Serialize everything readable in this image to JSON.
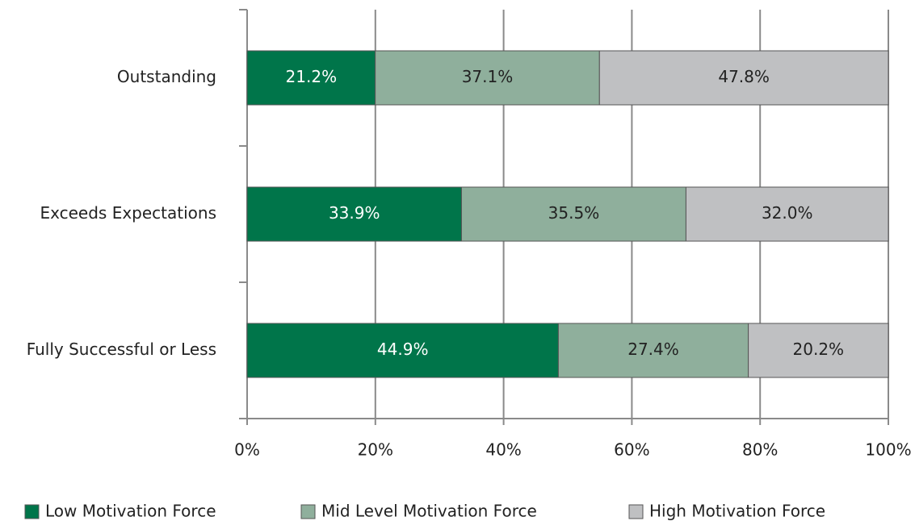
{
  "chart_data": {
    "type": "bar",
    "orientation": "horizontal",
    "stacking": "percent",
    "categories": [
      "Outstanding",
      "Exceeds Expectations",
      "Fully Successful or Less"
    ],
    "series": [
      {
        "name": "Low Motivation Force",
        "color": "#00754a",
        "label_color": "#ffffff",
        "values": [
          21.2,
          33.9,
          44.9
        ],
        "value_labels": [
          "21.2%",
          "33.9%",
          "44.9%"
        ]
      },
      {
        "name": "Mid Level Motivation Force",
        "color": "#8faf9c",
        "label_color": "#222222",
        "values": [
          37.1,
          35.5,
          27.4
        ],
        "value_labels": [
          "37.1%",
          "35.5%",
          "27.4%"
        ]
      },
      {
        "name": "High Motivation Force",
        "color": "#bfc0c2",
        "label_color": "#222222",
        "values": [
          47.8,
          32.0,
          20.2
        ],
        "value_labels": [
          "47.8%",
          "32.0%",
          "20.2%"
        ]
      }
    ],
    "xlim": [
      0,
      100
    ],
    "xticks": [
      {
        "value": 0,
        "label": "0%"
      },
      {
        "value": 20,
        "label": "20%"
      },
      {
        "value": 40,
        "label": "40%"
      },
      {
        "value": 60,
        "label": "60%"
      },
      {
        "value": 80,
        "label": "80%"
      },
      {
        "value": 100,
        "label": "100%"
      }
    ],
    "grid": true,
    "legend": "bottom"
  }
}
